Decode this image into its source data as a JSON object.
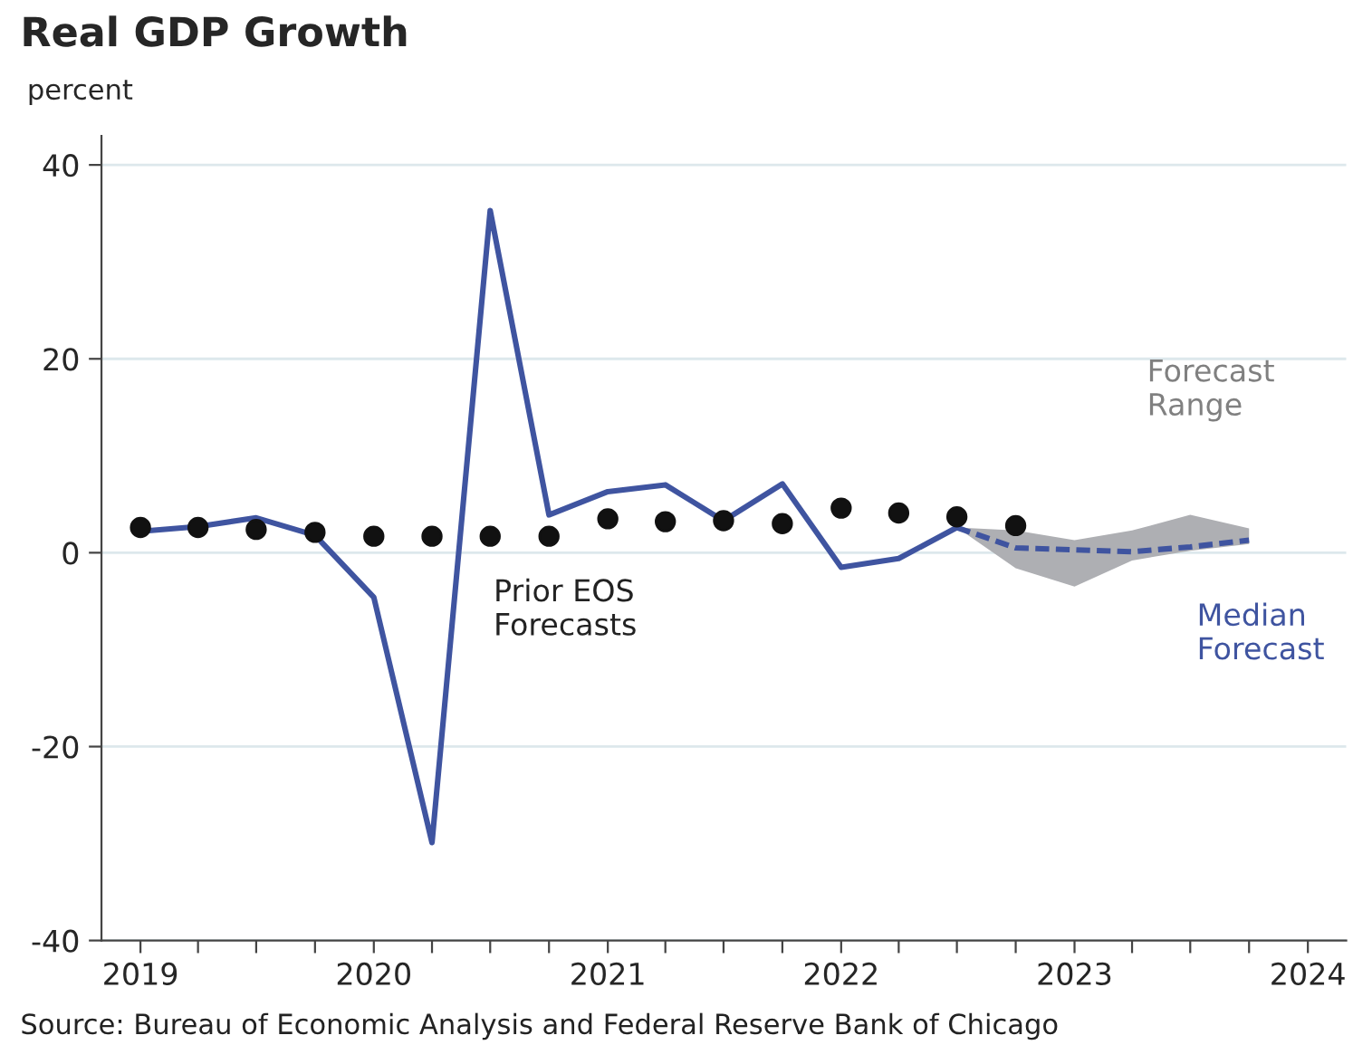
{
  "chart_data": {
    "type": "line",
    "title": "Real GDP Growth",
    "ylabel": "percent",
    "series": [
      {
        "color": "#3f54a0",
        "x": [
          "2019-01",
          "2019-04",
          "2019-07",
          "2019-10",
          "2020-01",
          "2020-04",
          "2020-07",
          "2020-10",
          "2021-01",
          "2021-04",
          "2021-07",
          "2021-10",
          "2022-01",
          "2022-04",
          "2022-07"
        ],
        "values": [
          2.2,
          2.7,
          3.6,
          1.8,
          -4.6,
          -29.9,
          35.3,
          3.9,
          6.3,
          7.0,
          3.3,
          7.1,
          -1.5,
          -0.6,
          2.6
        ]
      },
      {
        "type": "scatter",
        "name": "Prior EOS Forecasts",
        "color": "#111111",
        "marker": "circle",
        "x": [
          "2019-01",
          "2019-04",
          "2019-07",
          "2019-10",
          "2020-01",
          "2020-04",
          "2020-07",
          "2020-10",
          "2021-01",
          "2021-04",
          "2021-07",
          "2021-10",
          "2022-01",
          "2022-04",
          "2022-07",
          "2022-10"
        ],
        "values": [
          2.6,
          2.6,
          2.4,
          2.1,
          1.7,
          1.7,
          1.7,
          1.7,
          3.5,
          3.2,
          3.3,
          3.0,
          4.6,
          4.1,
          3.7,
          2.8
        ]
      },
      {
        "type": "line",
        "name": "Median Forecast",
        "color": "#3f54a0",
        "line_style": "dashed",
        "x": [
          "2022-07",
          "2022-10",
          "2023-01",
          "2023-04",
          "2023-07",
          "2023-10"
        ],
        "values": [
          2.6,
          0.5,
          0.3,
          0.1,
          0.6,
          1.3
        ],
        "lower": [
          2.6,
          -1.6,
          -3.5,
          -0.8,
          0.2,
          0.9
        ],
        "upper": [
          2.6,
          2.3,
          1.3,
          2.3,
          3.9,
          2.5
        ]
      }
    ],
    "annotations": [
      "Forecast Range",
      "Source: Bureau of Economic Analysis and Federal Reserve Bank of Chicago"
    ],
    "xlim": [
      "2018-11",
      "2024-03"
    ],
    "xticks": [
      {
        "value": "2019",
        "label": "2019"
      },
      {
        "value": "2019-04",
        "label": null
      },
      {
        "value": "2019-07",
        "label": null
      },
      {
        "value": "2019-10",
        "label": null
      },
      {
        "value": "2020",
        "label": "2020"
      },
      {
        "value": "2020-04",
        "label": null
      },
      {
        "value": "2020-07",
        "label": null
      },
      {
        "value": "2020-10",
        "label": null
      },
      {
        "value": "2021",
        "label": "2021"
      },
      {
        "value": "2021-04",
        "label": null
      },
      {
        "value": "2021-07",
        "label": null
      },
      {
        "value": "2021-10",
        "label": null
      },
      {
        "value": "2022",
        "label": "2022"
      },
      {
        "value": "2022-04",
        "label": null
      },
      {
        "value": "2022-07",
        "label": null
      },
      {
        "value": "2022-10",
        "label": null
      },
      {
        "value": "2023",
        "label": "2023"
      },
      {
        "value": "2023-04",
        "label": null
      },
      {
        "value": "2023-07",
        "label": null
      },
      {
        "value": "2023-10",
        "label": null
      },
      {
        "value": "2024",
        "label": "2024"
      }
    ],
    "ylim": [
      -40,
      43
    ],
    "yticks": [
      -40,
      -20,
      0,
      20,
      40
    ],
    "grid": "y",
    "legend": false
  }
}
